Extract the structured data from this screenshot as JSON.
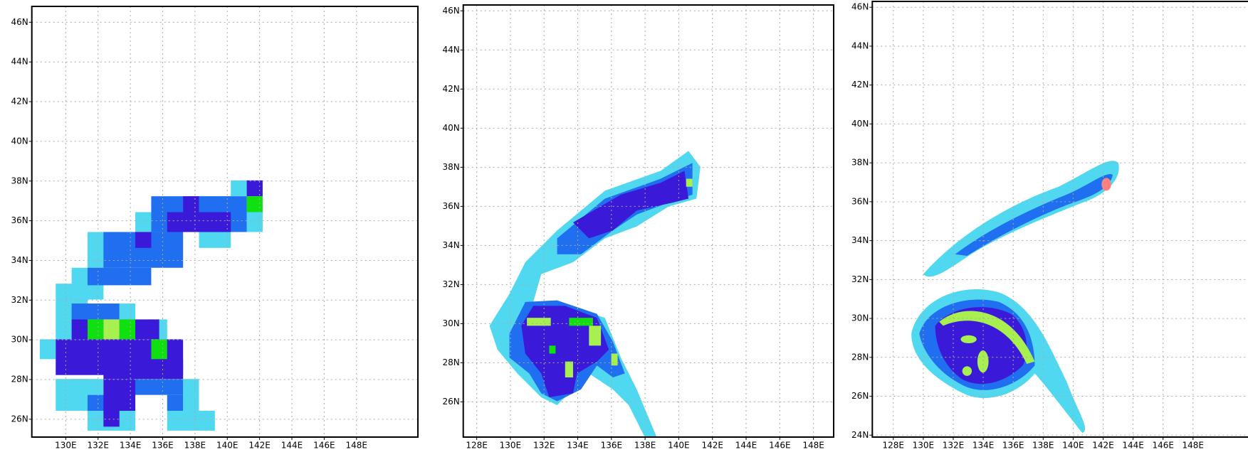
{
  "panels": [
    {
      "xlim": [
        127.9,
        151.8
      ],
      "ylim": [
        25.1,
        46.8
      ],
      "xticks": [
        {
          "value": 130,
          "label": "130E"
        },
        {
          "value": 132,
          "label": "132E"
        },
        {
          "value": 134,
          "label": "134E"
        },
        {
          "value": 136,
          "label": "136E"
        },
        {
          "value": 138,
          "label": "138E"
        },
        {
          "value": 140,
          "label": "140E"
        },
        {
          "value": 142,
          "label": "142E"
        },
        {
          "value": 144,
          "label": "144E"
        },
        {
          "value": 146,
          "label": "146E"
        },
        {
          "value": 148,
          "label": "148E"
        }
      ],
      "yticks": [
        {
          "value": 26,
          "label": "26N"
        },
        {
          "value": 28,
          "label": "28N"
        },
        {
          "value": 30,
          "label": "30N"
        },
        {
          "value": 32,
          "label": "32N"
        },
        {
          "value": 34,
          "label": "34N"
        },
        {
          "value": 36,
          "label": "36N"
        },
        {
          "value": 38,
          "label": "38N"
        },
        {
          "value": 40,
          "label": "40N"
        },
        {
          "value": 42,
          "label": "42N"
        },
        {
          "value": 44,
          "label": "44N"
        },
        {
          "value": 46,
          "label": "46N"
        }
      ]
    },
    {
      "xlim": [
        127.2,
        149.2
      ],
      "ylim": [
        24.2,
        46.3
      ],
      "xticks": [
        {
          "value": 128,
          "label": "128E"
        },
        {
          "value": 130,
          "label": "130E"
        },
        {
          "value": 132,
          "label": "132E"
        },
        {
          "value": 134,
          "label": "134E"
        },
        {
          "value": 136,
          "label": "136E"
        },
        {
          "value": 138,
          "label": "138E"
        },
        {
          "value": 140,
          "label": "140E"
        },
        {
          "value": 142,
          "label": "142E"
        },
        {
          "value": 144,
          "label": "144E"
        },
        {
          "value": 146,
          "label": "146E"
        },
        {
          "value": 148,
          "label": "148E"
        }
      ],
      "yticks": [
        {
          "value": 26,
          "label": "26N"
        },
        {
          "value": 28,
          "label": "28N"
        },
        {
          "value": 30,
          "label": "30N"
        },
        {
          "value": 32,
          "label": "32N"
        },
        {
          "value": 34,
          "label": "34N"
        },
        {
          "value": 36,
          "label": "36N"
        },
        {
          "value": 38,
          "label": "38N"
        },
        {
          "value": 40,
          "label": "40N"
        },
        {
          "value": 42,
          "label": "42N"
        },
        {
          "value": 44,
          "label": "44N"
        },
        {
          "value": 46,
          "label": "46N"
        }
      ]
    },
    {
      "xlim": [
        126.6,
        152
      ],
      "ylim": [
        23.9,
        46.3
      ],
      "xticks": [
        {
          "value": 128,
          "label": "128E"
        },
        {
          "value": 130,
          "label": "130E"
        },
        {
          "value": 132,
          "label": "132E"
        },
        {
          "value": 134,
          "label": "134E"
        },
        {
          "value": 136,
          "label": "136E"
        },
        {
          "value": 138,
          "label": "138E"
        },
        {
          "value": 140,
          "label": "140E"
        },
        {
          "value": 142,
          "label": "142E"
        },
        {
          "value": 144,
          "label": "144E"
        },
        {
          "value": 146,
          "label": "146E"
        },
        {
          "value": 148,
          "label": "148E"
        }
      ],
      "yticks": [
        {
          "value": 24,
          "label": "24N"
        },
        {
          "value": 26,
          "label": "26N"
        },
        {
          "value": 28,
          "label": "28N"
        },
        {
          "value": 30,
          "label": "30N"
        },
        {
          "value": 32,
          "label": "32N"
        },
        {
          "value": 34,
          "label": "34N"
        },
        {
          "value": 36,
          "label": "36N"
        },
        {
          "value": 38,
          "label": "38N"
        },
        {
          "value": 40,
          "label": "40N"
        },
        {
          "value": 42,
          "label": "42N"
        },
        {
          "value": 44,
          "label": "44N"
        },
        {
          "value": 46,
          "label": "46N"
        }
      ]
    }
  ]
}
